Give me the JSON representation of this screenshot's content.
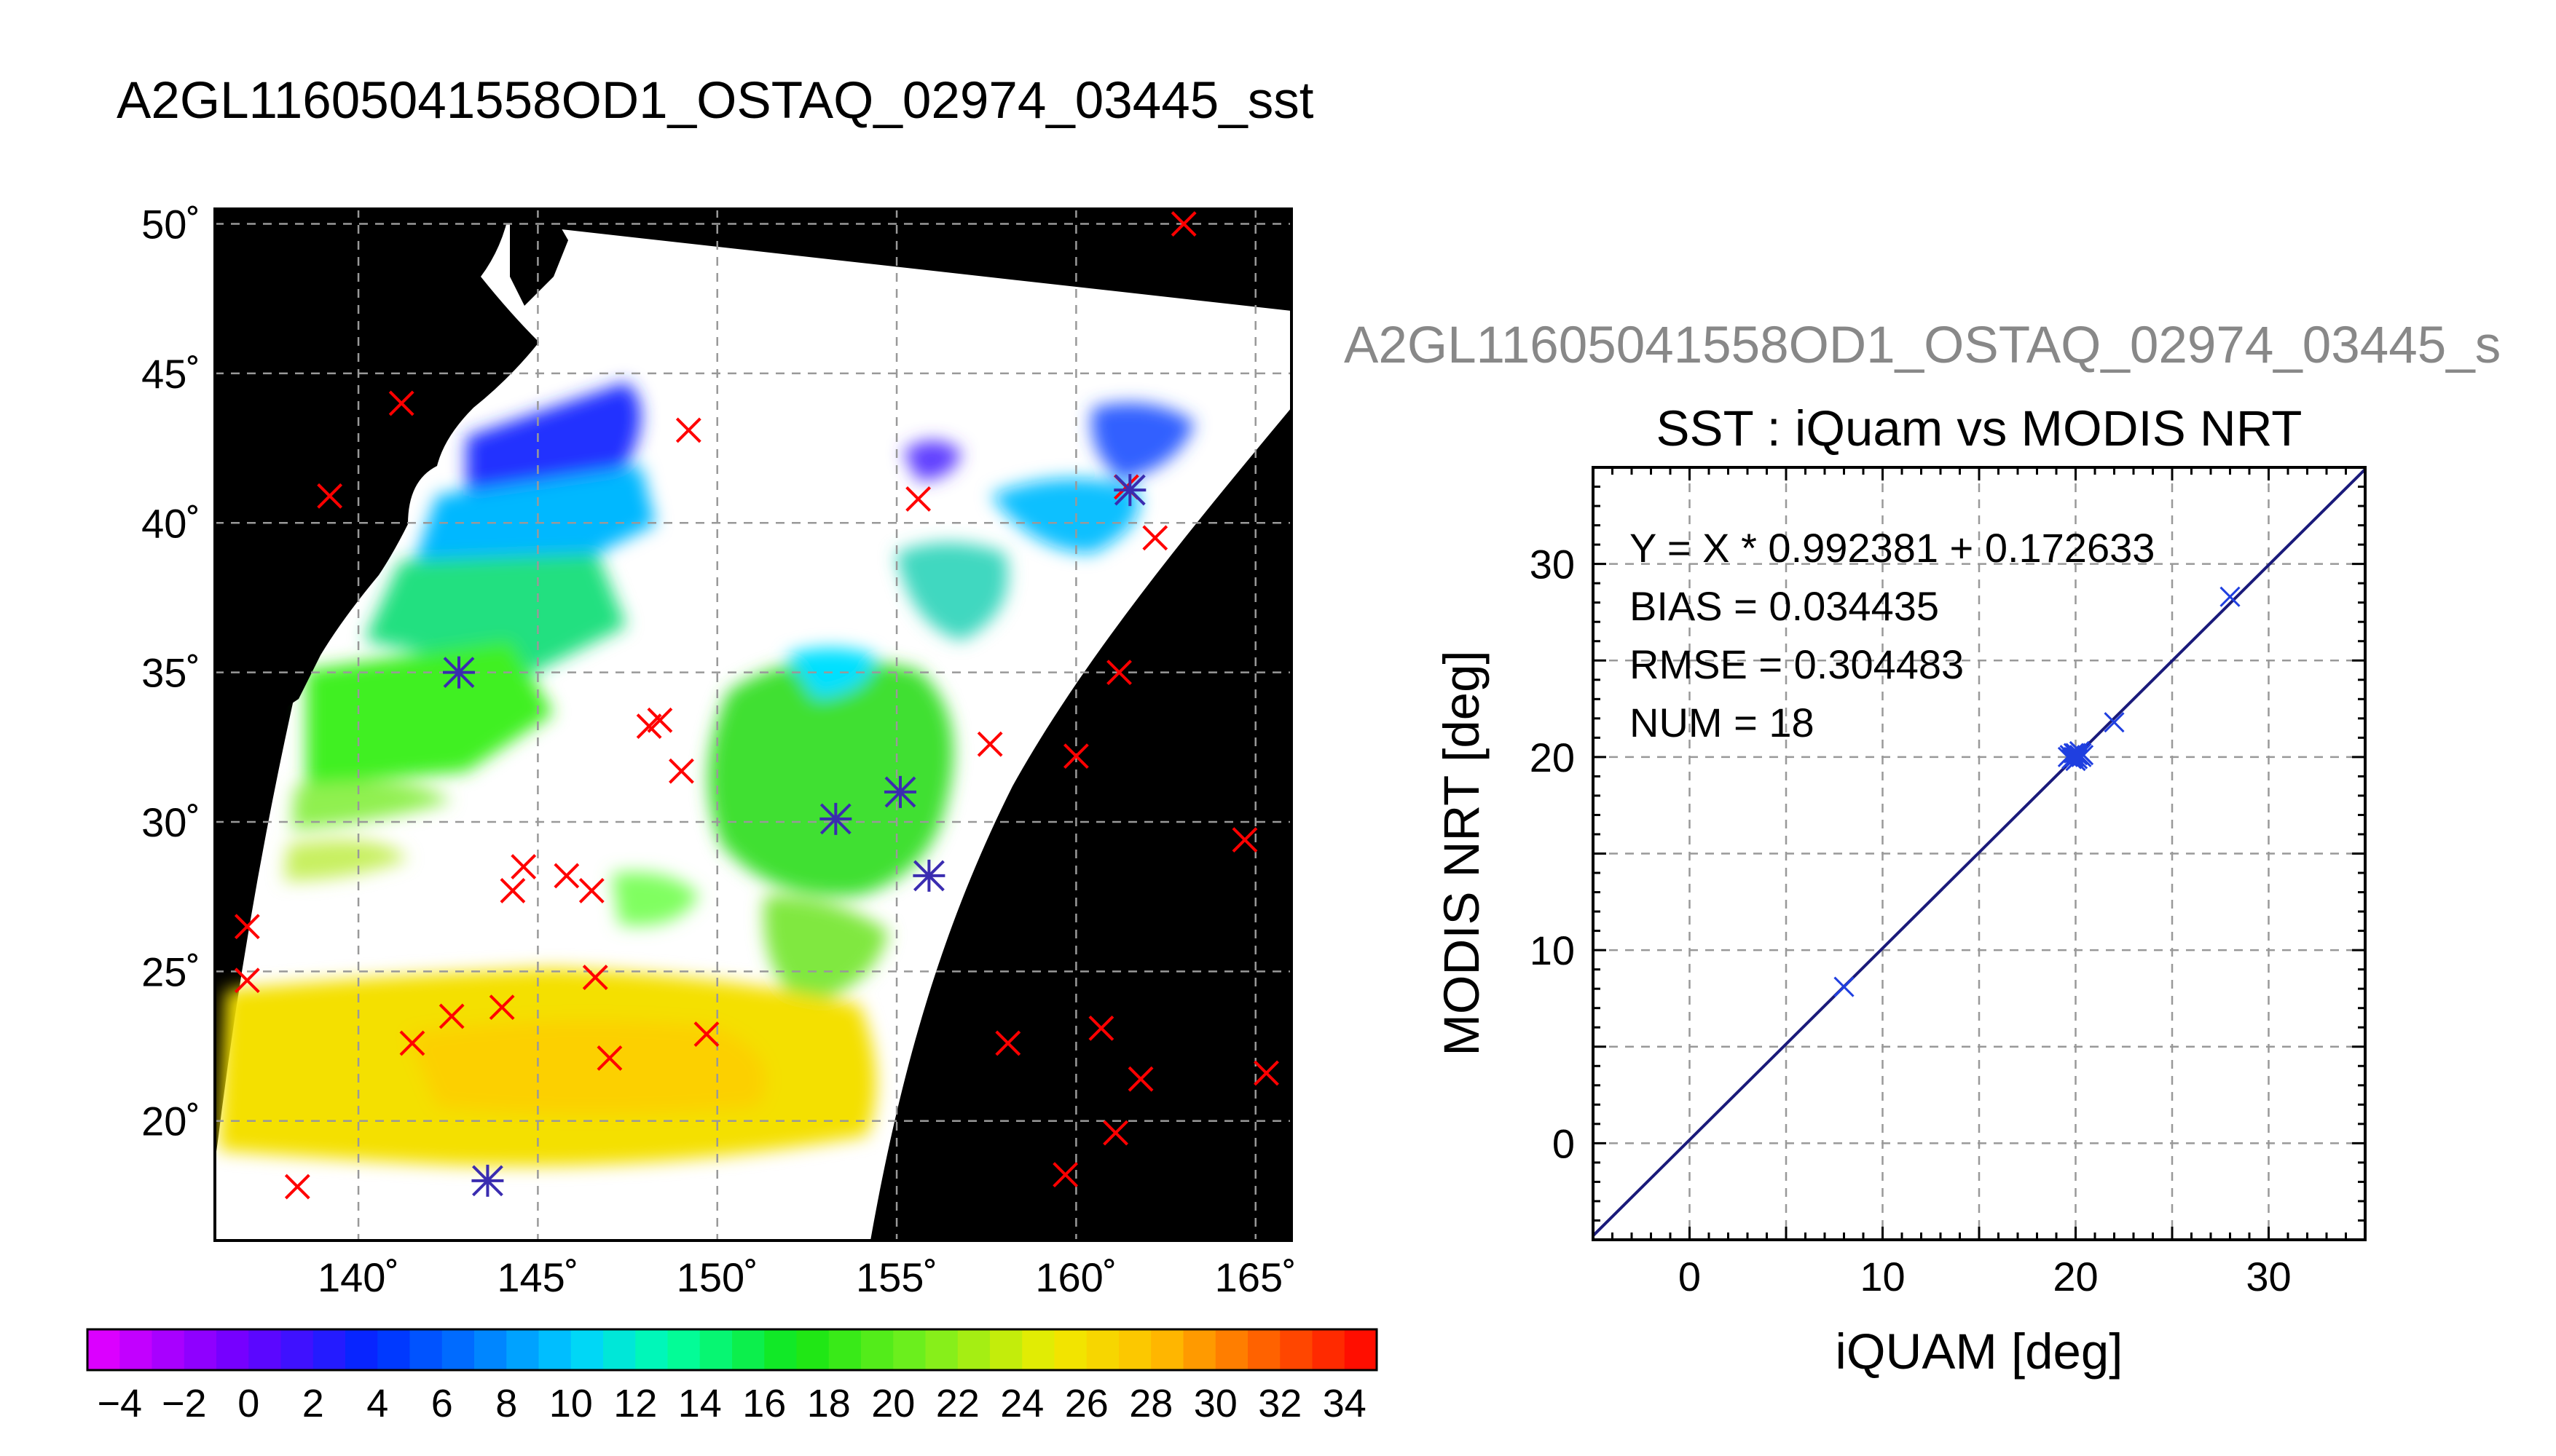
{
  "page_title": "A2GL11605041558OD1_OSTAQ_02974_03445_sst",
  "colors": {
    "land": "#000000",
    "no_data": "#ffffff",
    "insitu_marker": "#ff0000",
    "matchup_marker": "#3a2cb0",
    "fit_line": "#1a1a7a",
    "scatter_marker": "#1f3fe0",
    "subtitle_gray": "#888888"
  },
  "chart_data": [
    {
      "type": "map",
      "title": "",
      "lon_range": [
        136,
        166
      ],
      "lat_range": [
        16,
        50.5
      ],
      "lon_ticks": [
        140,
        145,
        150,
        155,
        160,
        165
      ],
      "lon_tick_labels": [
        "140˚",
        "145˚",
        "150˚",
        "155˚",
        "160˚",
        "165˚"
      ],
      "lat_ticks": [
        20,
        25,
        30,
        35,
        40,
        45,
        50
      ],
      "lat_tick_labels": [
        "20˚",
        "25˚",
        "30˚",
        "35˚",
        "40˚",
        "45˚",
        "50˚"
      ],
      "grid": true,
      "insitu_points": [
        [
          163.0,
          50.0
        ],
        [
          141.2,
          44.0
        ],
        [
          149.2,
          43.1
        ],
        [
          139.2,
          40.9
        ],
        [
          155.6,
          40.8
        ],
        [
          161.4,
          41.2
        ],
        [
          162.2,
          39.5
        ],
        [
          161.2,
          35.0
        ],
        [
          148.1,
          33.2
        ],
        [
          148.4,
          33.4
        ],
        [
          157.6,
          32.6
        ],
        [
          160.0,
          32.2
        ],
        [
          149.0,
          31.7
        ],
        [
          144.6,
          28.5
        ],
        [
          144.3,
          27.7
        ],
        [
          145.8,
          28.2
        ],
        [
          146.5,
          27.7
        ],
        [
          136.9,
          26.5
        ],
        [
          136.9,
          24.7
        ],
        [
          146.6,
          24.8
        ],
        [
          141.5,
          22.6
        ],
        [
          142.6,
          23.5
        ],
        [
          144.0,
          23.8
        ],
        [
          147.0,
          22.1
        ],
        [
          149.7,
          22.9
        ],
        [
          158.1,
          22.6
        ],
        [
          160.7,
          23.1
        ],
        [
          161.8,
          21.4
        ],
        [
          165.3,
          21.6
        ],
        [
          164.7,
          29.4
        ],
        [
          161.1,
          19.6
        ],
        [
          159.7,
          18.2
        ],
        [
          138.3,
          17.8
        ]
      ],
      "matchup_points": [
        [
          142.8,
          35.0
        ],
        [
          153.3,
          30.1
        ],
        [
          155.1,
          31.0
        ],
        [
          155.9,
          28.2
        ],
        [
          143.6,
          18.0
        ],
        [
          161.5,
          41.1
        ]
      ],
      "colorbar": {
        "min": -5,
        "max": 35,
        "step": 1,
        "tick_labels": [
          "−4",
          "−2",
          "0",
          "2",
          "4",
          "6",
          "8",
          "10",
          "12",
          "14",
          "16",
          "18",
          "20",
          "22",
          "24",
          "26",
          "28",
          "30",
          "32",
          "34"
        ]
      }
    },
    {
      "type": "scatter",
      "header": "A2GL11605041558OD1_OSTAQ_02974_03445_s",
      "title": "SST : iQuam vs MODIS NRT",
      "xlabel": "iQUAM [deg]",
      "ylabel": "MODIS NRT [deg]",
      "xlim": [
        -5,
        35
      ],
      "ylim": [
        -5,
        35
      ],
      "x_ticks": [
        0,
        10,
        20,
        30
      ],
      "y_ticks": [
        0,
        10,
        20,
        30
      ],
      "grid": true,
      "points": [
        {
          "x": 8.0,
          "y": 8.1
        },
        {
          "x": 19.7,
          "y": 20.1
        },
        {
          "x": 19.9,
          "y": 20.0
        },
        {
          "x": 20.0,
          "y": 20.2
        },
        {
          "x": 20.1,
          "y": 19.9
        },
        {
          "x": 20.2,
          "y": 20.1
        },
        {
          "x": 20.3,
          "y": 20.0
        },
        {
          "x": 19.8,
          "y": 19.9
        },
        {
          "x": 20.0,
          "y": 20.0
        },
        {
          "x": 20.2,
          "y": 20.3
        },
        {
          "x": 20.1,
          "y": 20.1
        },
        {
          "x": 19.9,
          "y": 20.2
        },
        {
          "x": 20.4,
          "y": 20.1
        },
        {
          "x": 19.6,
          "y": 20.0
        },
        {
          "x": 20.0,
          "y": 19.8
        },
        {
          "x": 20.3,
          "y": 20.2
        },
        {
          "x": 22.0,
          "y": 21.8
        },
        {
          "x": 28.0,
          "y": 28.3
        }
      ],
      "fit": {
        "slope": 0.992381,
        "intercept": 0.172633
      },
      "stats": {
        "equation": "Y = X * 0.992381 + 0.172633",
        "bias": "BIAS = 0.034435",
        "rmse": "RMSE = 0.304483",
        "num": "NUM = 18"
      }
    }
  ]
}
